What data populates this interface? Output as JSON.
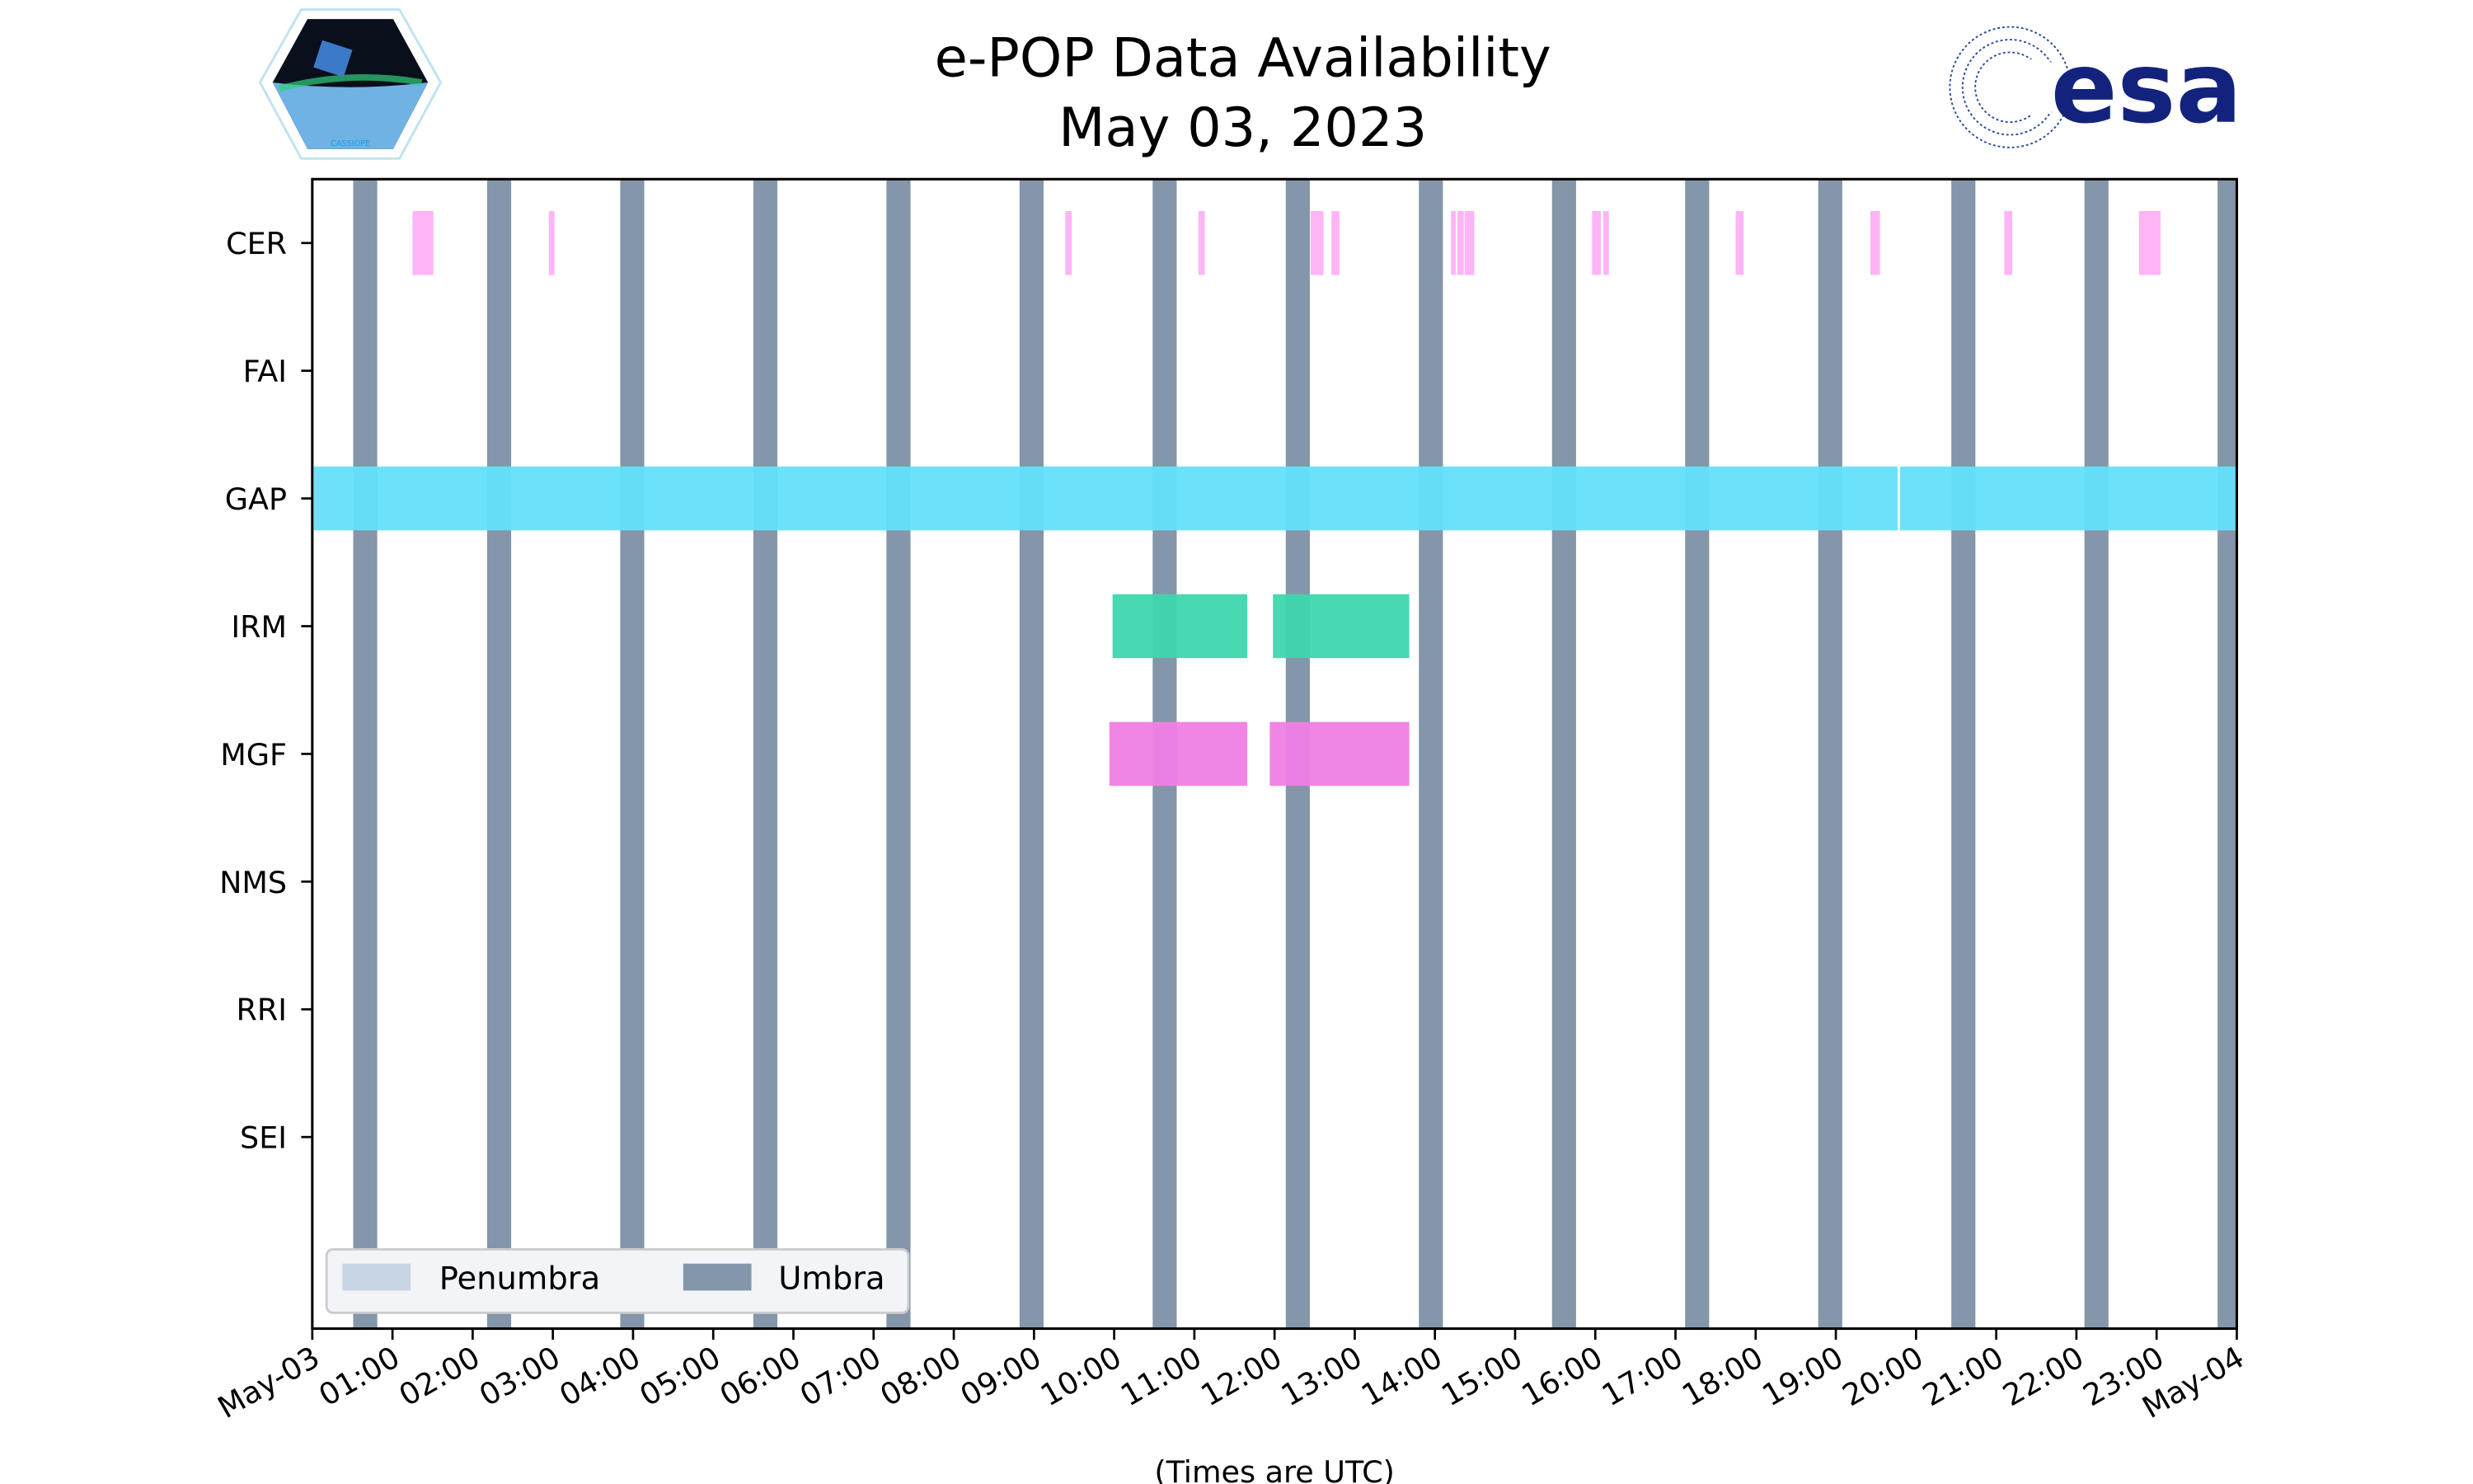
{
  "chart_data": {
    "type": "timeline",
    "title": "e-POP Data Availability",
    "subtitle": "May 03, 2023",
    "xlabel": "(Times are UTC)",
    "x_unit": "hours since May-03 00:00 UTC",
    "xlim": [
      0,
      24
    ],
    "x_ticks": [
      {
        "value": 0,
        "label": "May-03"
      },
      {
        "value": 1,
        "label": "01:00"
      },
      {
        "value": 2,
        "label": "02:00"
      },
      {
        "value": 3,
        "label": "03:00"
      },
      {
        "value": 4,
        "label": "04:00"
      },
      {
        "value": 5,
        "label": "05:00"
      },
      {
        "value": 6,
        "label": "06:00"
      },
      {
        "value": 7,
        "label": "07:00"
      },
      {
        "value": 8,
        "label": "08:00"
      },
      {
        "value": 9,
        "label": "09:00"
      },
      {
        "value": 10,
        "label": "10:00"
      },
      {
        "value": 11,
        "label": "11:00"
      },
      {
        "value": 12,
        "label": "12:00"
      },
      {
        "value": 13,
        "label": "13:00"
      },
      {
        "value": 14,
        "label": "14:00"
      },
      {
        "value": 15,
        "label": "15:00"
      },
      {
        "value": 16,
        "label": "16:00"
      },
      {
        "value": 17,
        "label": "17:00"
      },
      {
        "value": 18,
        "label": "18:00"
      },
      {
        "value": 19,
        "label": "19:00"
      },
      {
        "value": 20,
        "label": "20:00"
      },
      {
        "value": 21,
        "label": "21:00"
      },
      {
        "value": 22,
        "label": "22:00"
      },
      {
        "value": 23,
        "label": "23:00"
      },
      {
        "value": 24,
        "label": "May-04"
      }
    ],
    "instruments": [
      "CER",
      "FAI",
      "GAP",
      "IRM",
      "MGF",
      "NMS",
      "RRI",
      "SEI"
    ],
    "series": [
      {
        "name": "CER",
        "color": "#ffb0f5",
        "intervals": [
          [
            1.25,
            1.51
          ],
          [
            2.95,
            3.02
          ],
          [
            9.39,
            9.47
          ],
          [
            11.05,
            11.13
          ],
          [
            12.45,
            12.61
          ],
          [
            12.71,
            12.81
          ],
          [
            14.2,
            14.26
          ],
          [
            14.28,
            14.36
          ],
          [
            14.37,
            14.49
          ],
          [
            15.96,
            16.07
          ],
          [
            16.1,
            16.17
          ],
          [
            17.75,
            17.85
          ],
          [
            19.43,
            19.55
          ],
          [
            21.1,
            21.2
          ],
          [
            22.78,
            23.05
          ]
        ]
      },
      {
        "name": "FAI",
        "color": "#ffb0f5",
        "intervals": []
      },
      {
        "name": "GAP",
        "color": "#63e0fa",
        "intervals": [
          [
            0.02,
            19.77
          ],
          [
            19.8,
            24.0
          ]
        ]
      },
      {
        "name": "IRM",
        "color": "#3ed6ae",
        "intervals": [
          [
            9.98,
            11.66
          ],
          [
            11.98,
            13.68
          ]
        ]
      },
      {
        "name": "MGF",
        "color": "#f07ee5",
        "intervals": [
          [
            9.94,
            11.66
          ],
          [
            11.94,
            13.68
          ]
        ]
      },
      {
        "name": "NMS",
        "color": "#ffb0f5",
        "intervals": []
      },
      {
        "name": "RRI",
        "color": "#ffb0f5",
        "intervals": []
      },
      {
        "name": "SEI",
        "color": "#ffb0f5",
        "intervals": []
      }
    ],
    "umbra": {
      "color": "#8496a9",
      "intervals": [
        [
          0.51,
          0.81
        ],
        [
          2.18,
          2.48
        ],
        [
          3.84,
          4.14
        ],
        [
          5.5,
          5.8
        ],
        [
          7.16,
          7.46
        ],
        [
          8.82,
          9.12
        ],
        [
          10.48,
          10.78
        ],
        [
          12.14,
          12.44
        ],
        [
          13.8,
          14.1
        ],
        [
          15.46,
          15.76
        ],
        [
          17.12,
          17.42
        ],
        [
          18.78,
          19.08
        ],
        [
          20.44,
          20.74
        ],
        [
          22.1,
          22.4
        ],
        [
          23.76,
          24.0
        ]
      ]
    },
    "penumbra": {
      "color": "#c8d5e4",
      "intervals": []
    },
    "legend": {
      "placement": "lower-left",
      "entries": [
        {
          "label": "Penumbra",
          "color": "#c8d5e4"
        },
        {
          "label": "Umbra",
          "color": "#8496a9"
        }
      ]
    }
  },
  "logos": {
    "left": "CASSIOPE",
    "right": "esa"
  }
}
